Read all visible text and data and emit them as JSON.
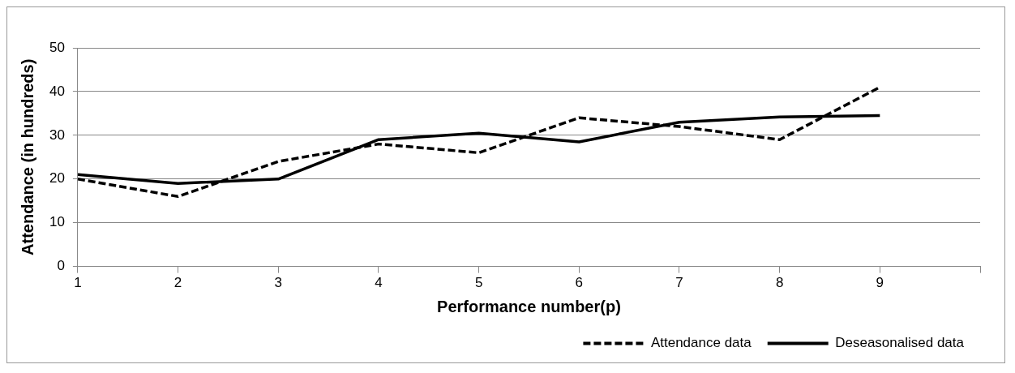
{
  "chart_data": {
    "type": "line",
    "xlabel": "Performance number(p)",
    "ylabel": "Attendance (in hundreds)",
    "x": [
      1,
      2,
      3,
      4,
      5,
      6,
      7,
      8,
      9
    ],
    "series": [
      {
        "name": "Attendance data",
        "color": "#000000",
        "line_style": "dashed",
        "values": [
          20,
          16,
          24,
          28,
          26,
          34,
          32,
          29,
          41
        ]
      },
      {
        "name": "Deseasonalised data",
        "color": "#000000",
        "line_style": "solid",
        "values": [
          21,
          19,
          20,
          29,
          30.5,
          28.5,
          33,
          34.2,
          34.5
        ]
      }
    ],
    "xlim": [
      1,
      10
    ],
    "xticks": [
      1,
      2,
      3,
      4,
      5,
      6,
      7,
      8,
      9,
      {
        "value": 10,
        "label": null
      }
    ],
    "ylim": [
      0,
      50
    ],
    "yticks": [
      0,
      10,
      20,
      30,
      40,
      50
    ],
    "grid": "y",
    "legend": "bottom right",
    "marker": "none"
  }
}
